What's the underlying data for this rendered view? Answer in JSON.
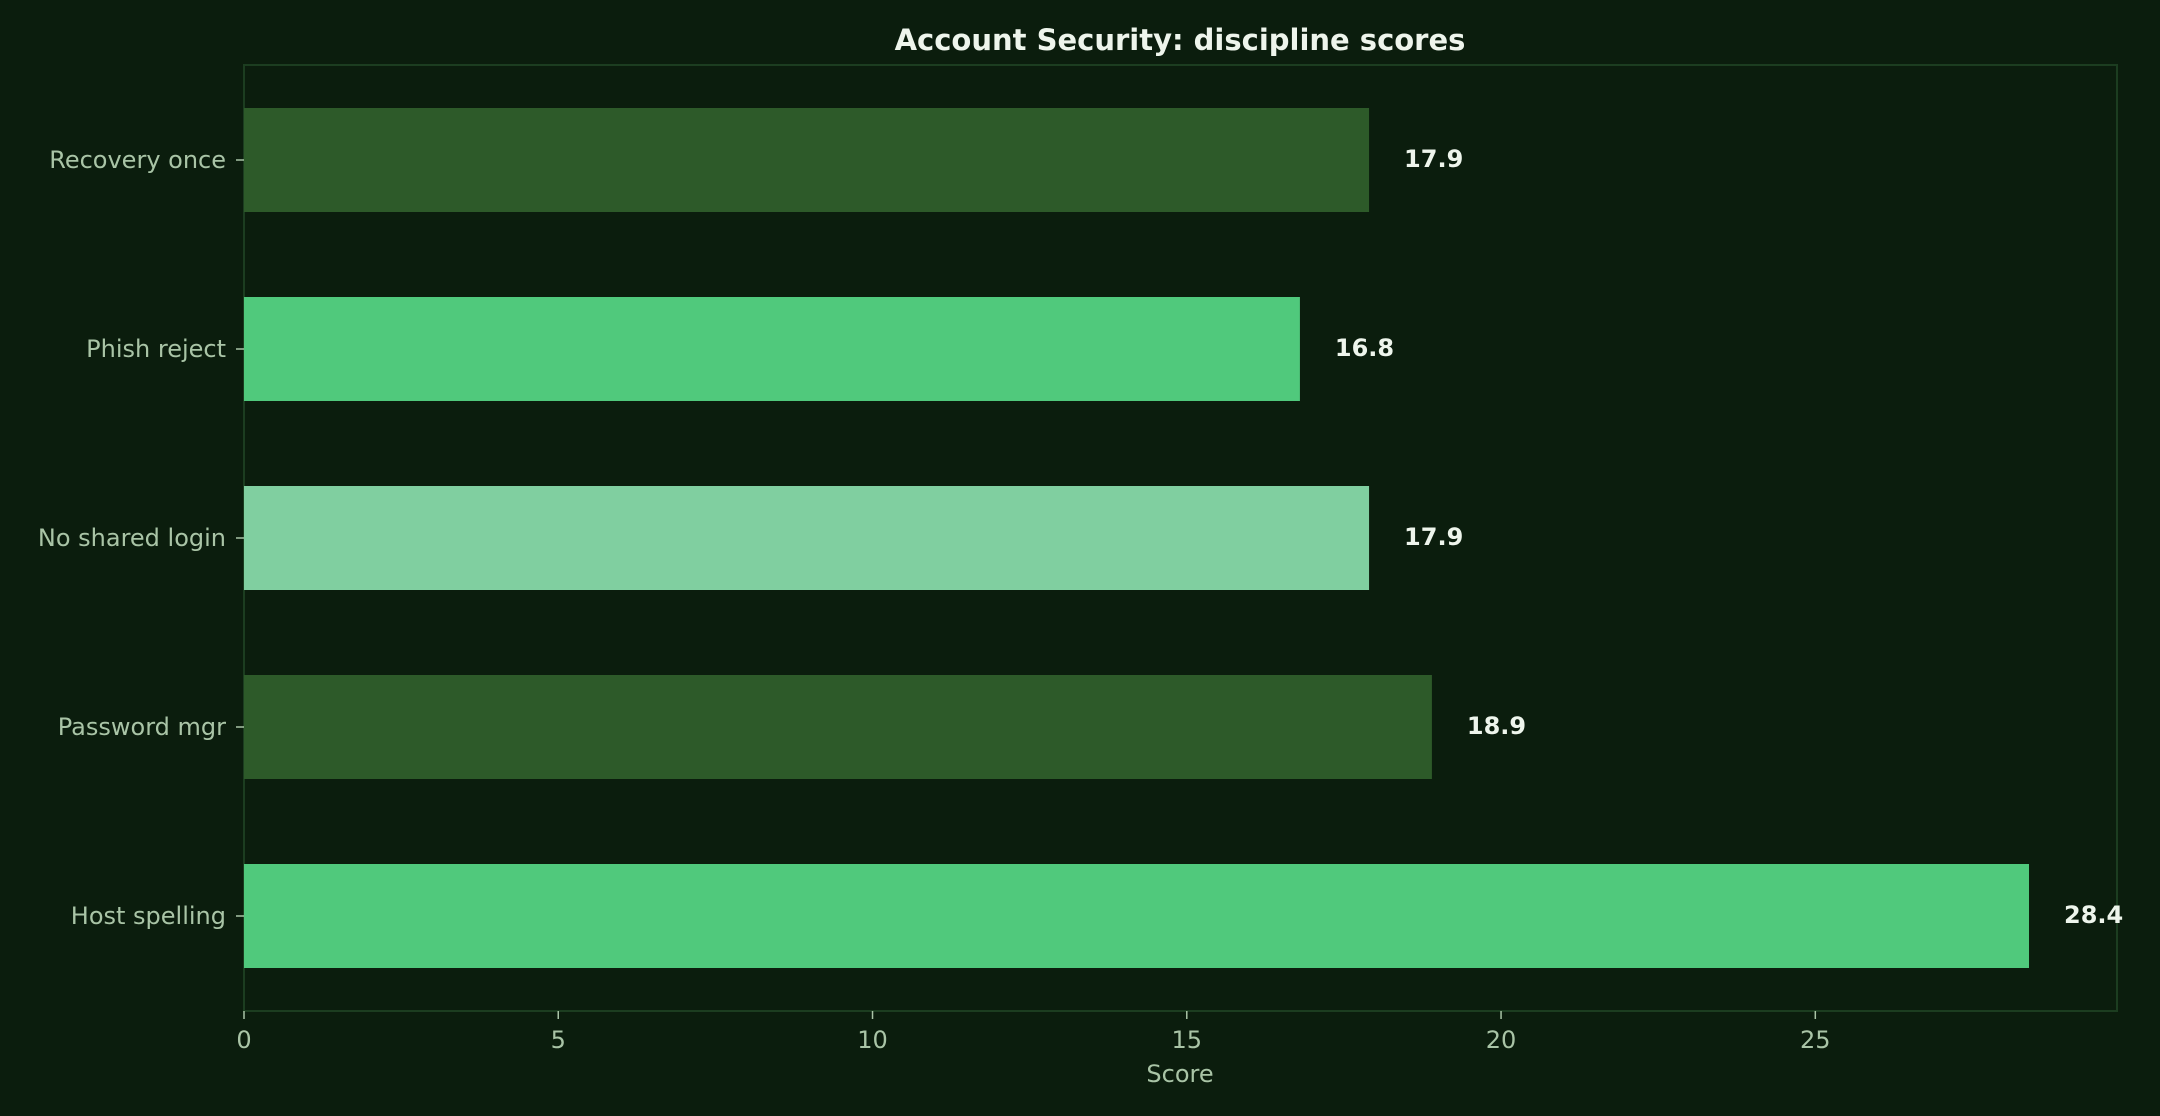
{
  "chart_data": {
    "type": "bar",
    "orientation": "horizontal",
    "title": "Account Security: discipline scores",
    "xlabel": "Score",
    "ylabel": "",
    "categories": [
      "Recovery once",
      "Phish reject",
      "No shared login",
      "Password mgr",
      "Host spelling"
    ],
    "values": [
      17.9,
      16.8,
      17.9,
      18.9,
      28.4
    ],
    "value_labels": [
      "17.9",
      "16.8",
      "17.9",
      "18.9",
      "28.4"
    ],
    "bar_colors": [
      "#2d5a29",
      "#50c97c",
      "#80cfa0",
      "#2d5a29",
      "#50c97c"
    ],
    "xlim": [
      0,
      29.8
    ],
    "xticks": [
      0,
      5,
      10,
      15,
      20,
      25
    ],
    "xtick_labels": [
      "0",
      "5",
      "10",
      "15",
      "20",
      "25"
    ],
    "grid": false,
    "legend": "none"
  },
  "colors": {
    "background": "#0b1d0d",
    "text": "#eef5ec",
    "muted_text": "#a9c4a6",
    "frame": "#1c3d20"
  }
}
